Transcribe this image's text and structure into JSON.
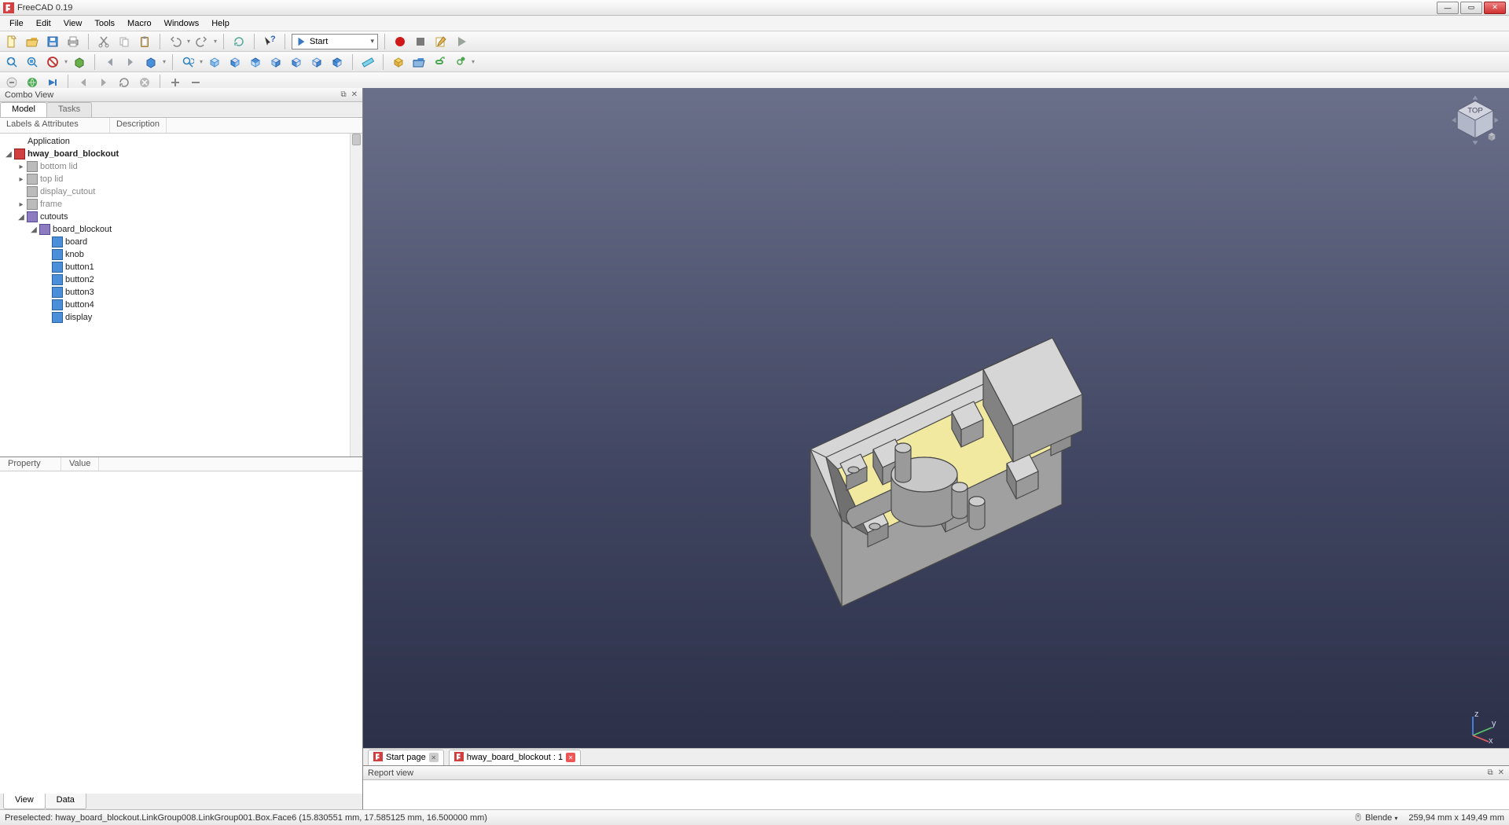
{
  "app": {
    "title": "FreeCAD 0.19"
  },
  "menu": [
    "File",
    "Edit",
    "View",
    "Tools",
    "Macro",
    "Windows",
    "Help"
  ],
  "workbench": {
    "selected": "Start"
  },
  "toolbar_colors": {
    "record": "#d01818",
    "stop": "#7a7a7a",
    "play": "#6aa84f",
    "newdoc": "#fff6c4",
    "open": "#e0b040",
    "save": "#e0b040"
  },
  "combo": {
    "title": "Combo View",
    "tabs": [
      "Model",
      "Tasks"
    ],
    "active_tab": 0,
    "tree_headers": [
      "Labels & Attributes",
      "Description"
    ],
    "root": "Application",
    "doc": "hway_board_blockout",
    "items": [
      {
        "indent": 1,
        "exp": "▸",
        "icon": "grey",
        "label": "bottom lid",
        "grey": true
      },
      {
        "indent": 1,
        "exp": "▸",
        "icon": "grey",
        "label": "top lid",
        "grey": true
      },
      {
        "indent": 1,
        "exp": " ",
        "icon": "grey",
        "label": "display_cutout",
        "grey": true
      },
      {
        "indent": 1,
        "exp": "▸",
        "icon": "grey",
        "label": "frame",
        "grey": true
      },
      {
        "indent": 1,
        "exp": "◢",
        "icon": "purple",
        "label": "cutouts"
      },
      {
        "indent": 2,
        "exp": "◢",
        "icon": "purple",
        "label": "board_blockout"
      },
      {
        "indent": 3,
        "exp": " ",
        "icon": "blue2",
        "label": "board"
      },
      {
        "indent": 3,
        "exp": " ",
        "icon": "blue2",
        "label": "knob"
      },
      {
        "indent": 3,
        "exp": " ",
        "icon": "blue2",
        "label": "button1"
      },
      {
        "indent": 3,
        "exp": " ",
        "icon": "blue2",
        "label": "button2"
      },
      {
        "indent": 3,
        "exp": " ",
        "icon": "blue2",
        "label": "button3"
      },
      {
        "indent": 3,
        "exp": " ",
        "icon": "blue2",
        "label": "button4"
      },
      {
        "indent": 3,
        "exp": " ",
        "icon": "blue2",
        "label": "display"
      }
    ],
    "prop_headers": [
      "Property",
      "Value"
    ],
    "bottom_tabs": [
      "View",
      "Data"
    ],
    "active_bottom": 0
  },
  "doc_tabs": [
    {
      "label": "Start page",
      "closable": true,
      "active": false
    },
    {
      "label": "hway_board_blockout : 1",
      "closable": true,
      "active": true
    }
  ],
  "report": {
    "title": "Report view"
  },
  "status": {
    "preselect": "Preselected: hway_board_blockout.LinkGroup008.LinkGroup001.Box.Face6 (15.830551 mm, 17.585125 mm, 16.500000 mm)",
    "style_label": "Blende",
    "dims": "259,94 mm x 149,49 mm"
  },
  "viewport": {
    "bg_top": "#6a6f8a",
    "bg_bottom": "#2c3048",
    "board_face": "#f2e9a0",
    "part_light": "#d6d6d6",
    "part_mid": "#b8b8b8",
    "part_dark": "#8e8e8e",
    "part_darker": "#707070",
    "stroke": "#4a4a4a"
  }
}
